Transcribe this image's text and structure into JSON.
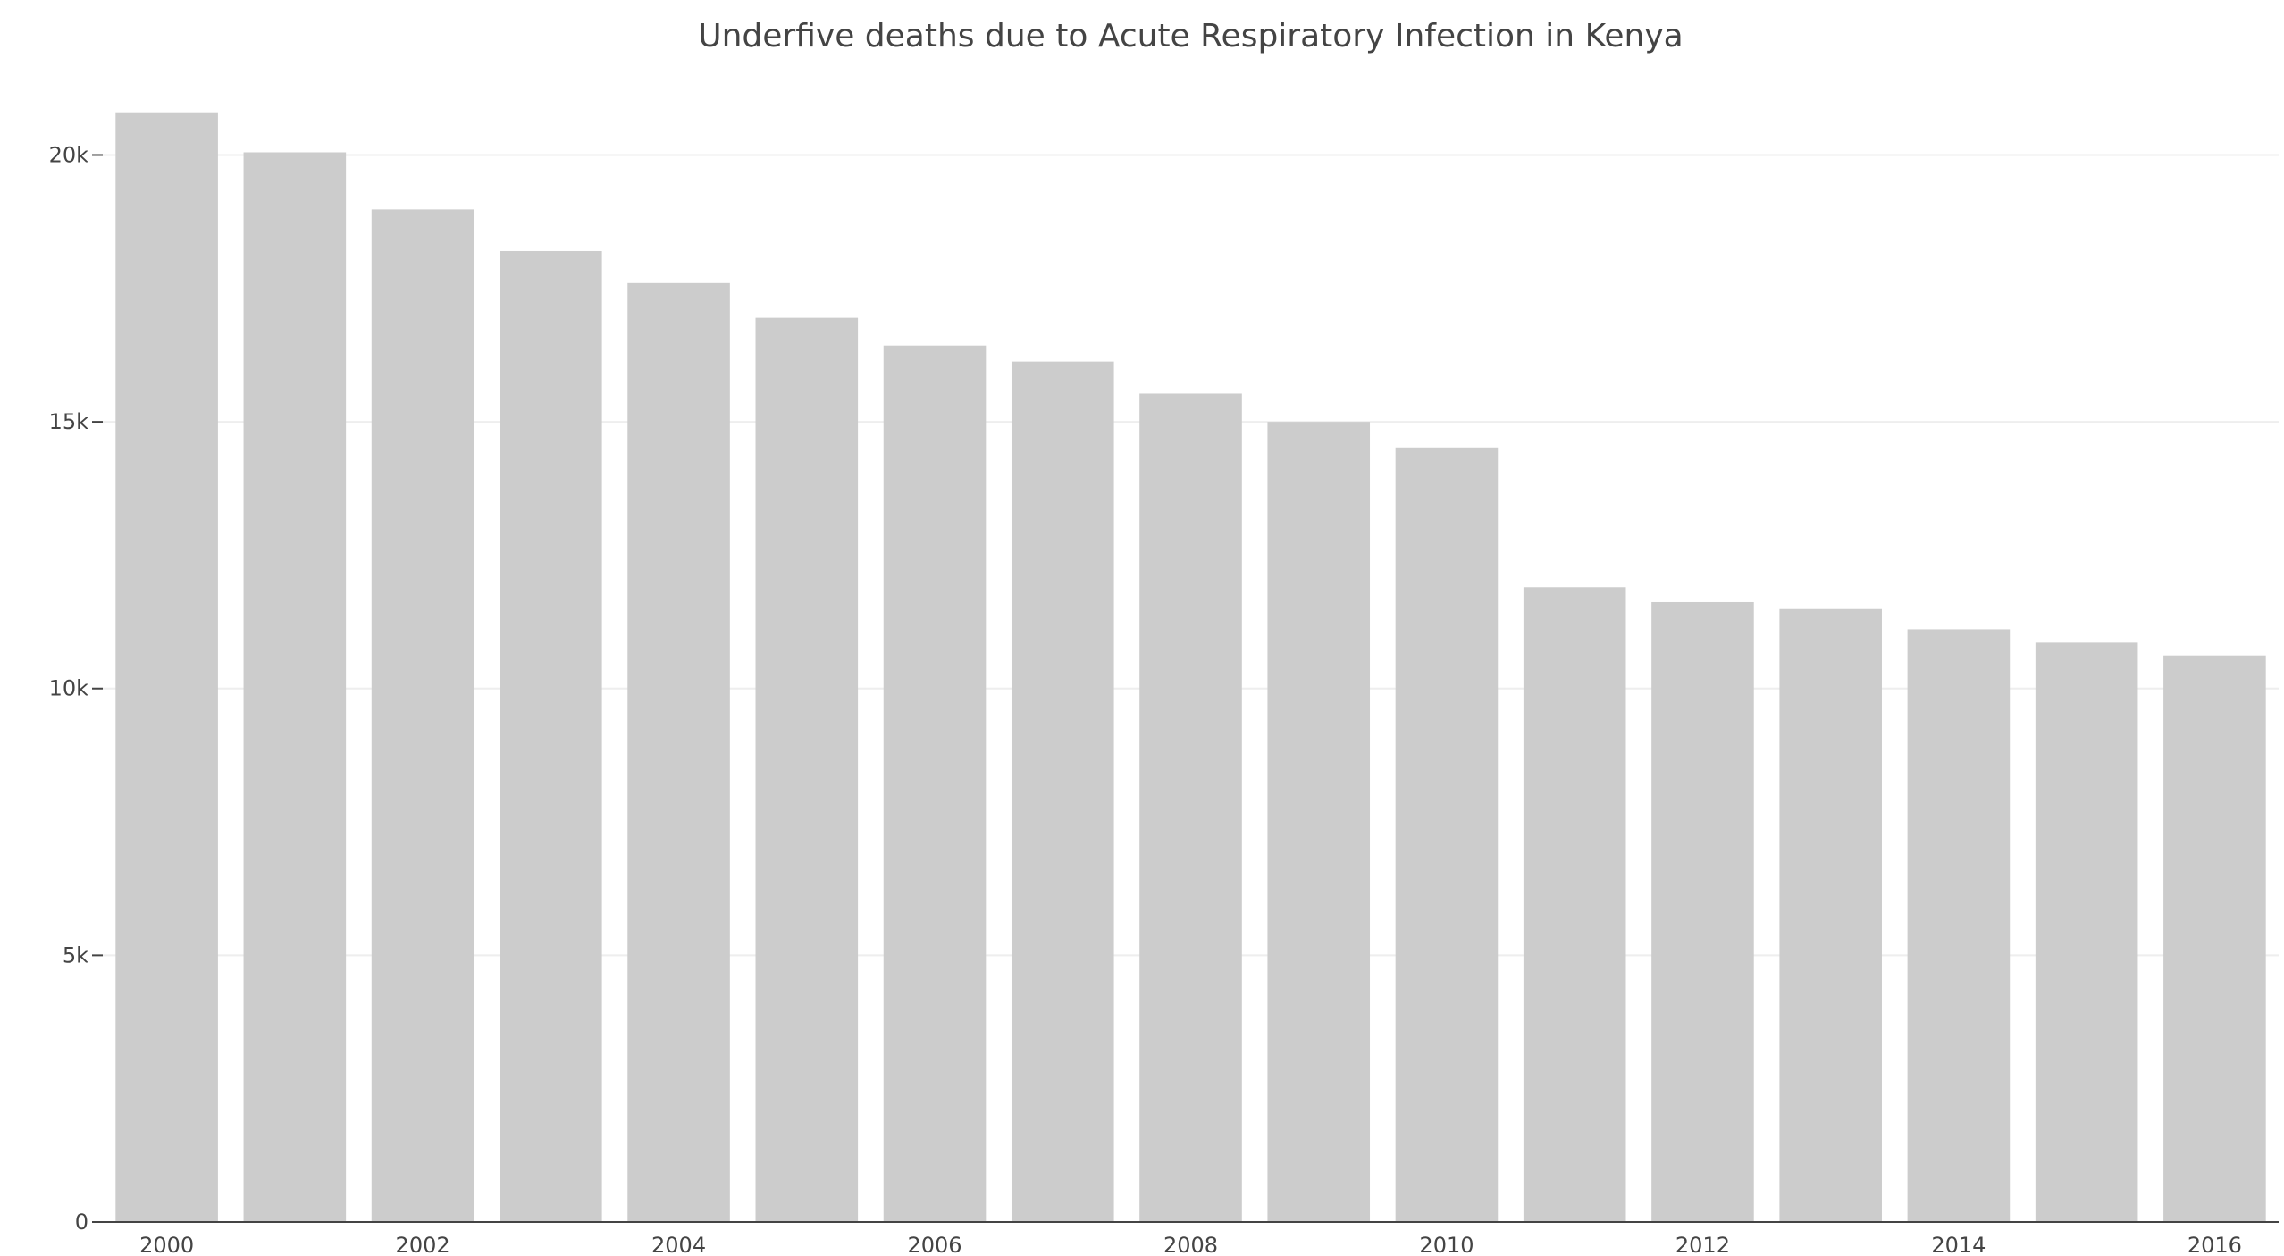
{
  "chart_data": {
    "type": "bar",
    "title": "Underfive deaths due to Acute Respiratory Infection in Kenya",
    "xlabel": "",
    "ylabel": "",
    "categories": [
      "2000",
      "2001",
      "2002",
      "2003",
      "2004",
      "2005",
      "2006",
      "2007",
      "2008",
      "2009",
      "2010",
      "2011",
      "2012",
      "2013",
      "2014",
      "2015",
      "2016"
    ],
    "values": [
      20800,
      20050,
      18980,
      18200,
      17600,
      16950,
      16430,
      16130,
      15530,
      15000,
      14520,
      11900,
      11620,
      11490,
      11110,
      10860,
      10620
    ],
    "x_tick_labels": [
      "2000",
      "2002",
      "2004",
      "2006",
      "2008",
      "2010",
      "2012",
      "2014",
      "2016"
    ],
    "y_ticks": [
      0,
      5000,
      10000,
      15000,
      20000
    ],
    "y_tick_labels": [
      "0",
      "5k",
      "10k",
      "15k",
      "20k"
    ],
    "ylim": [
      0,
      21900
    ],
    "grid": true,
    "colors": {
      "bar": "#cccccc",
      "grid": "#eeeeee",
      "axis": "#444444",
      "text": "#444444"
    }
  }
}
